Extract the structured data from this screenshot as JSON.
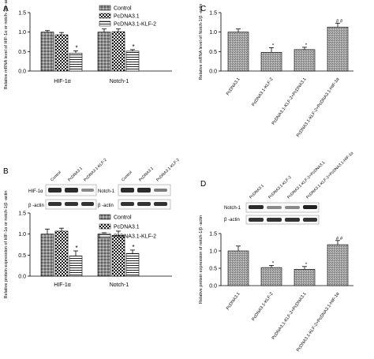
{
  "panels": [
    {
      "letter": "A",
      "chart_data": {
        "type": "bar",
        "categories": [
          "HIF-1α",
          "Notch-1"
        ],
        "series": [
          {
            "name": "Control",
            "values": [
              1.0,
              1.0
            ],
            "errors": [
              0.04,
              0.08
            ],
            "marks": [
              "",
              ""
            ]
          },
          {
            "name": "PcDNA3.1",
            "values": [
              0.93,
              1.01
            ],
            "errors": [
              0.06,
              0.07
            ],
            "marks": [
              "",
              ""
            ]
          },
          {
            "name": "PcDNA3.1-KLF-2",
            "values": [
              0.46,
              0.51
            ],
            "errors": [
              0.06,
              0.04
            ],
            "marks": [
              "*",
              "*"
            ]
          }
        ],
        "ylabel": "Relative mRNA level of HIF-1α or notch-1/β -actin",
        "ylim": [
          0,
          1.5
        ],
        "yticks": [
          "0.0",
          "0.5",
          "1.0",
          "1.5"
        ],
        "legend_position": "top-right"
      }
    },
    {
      "letter": "B",
      "blot": {
        "columns": [
          "Control",
          "PcDNA3.1",
          "PcDNA3.1-KLF-2"
        ],
        "left_rows": [
          "HIF-1α",
          "β -actin"
        ],
        "right_columns": [
          "Control",
          "PcDNA3.1",
          "PcDNA3.1-KLF-2"
        ],
        "right_rows": [
          "Notch-1",
          "β -actin"
        ]
      },
      "chart_data": {
        "type": "bar",
        "categories": [
          "HIF-1α",
          "Notch-1"
        ],
        "series": [
          {
            "name": "Control",
            "values": [
              1.0,
              1.0
            ],
            "errors": [
              0.12,
              0.03
            ],
            "marks": [
              "",
              ""
            ]
          },
          {
            "name": "PcDNA3.1",
            "values": [
              1.07,
              0.97
            ],
            "errors": [
              0.07,
              0.1
            ],
            "marks": [
              "",
              ""
            ]
          },
          {
            "name": "PcDNA3.1-KLF-2",
            "values": [
              0.48,
              0.54
            ],
            "errors": [
              0.12,
              0.08
            ],
            "marks": [
              "*",
              "*"
            ]
          }
        ],
        "ylabel": "Relative protein expression of HIF-1α or notch-1/β -actin",
        "ylim": [
          0,
          1.5
        ],
        "yticks": [
          "0.0",
          "0.5",
          "1.0",
          "1.5"
        ],
        "legend_position": "top-right"
      }
    },
    {
      "letter": "C",
      "chart_data": {
        "type": "bar",
        "categories": [
          "PcDNA3.1",
          "PcDNA3.1-KLF-2",
          "PcDNA3.1-KLF-2+PcDNA3.1",
          "PcDNA3.1-KLF-2+PcDNA3.1-HIF-1α"
        ],
        "values": [
          1.0,
          0.48,
          0.55,
          1.13
        ],
        "errors": [
          0.08,
          0.12,
          0.06,
          0.1
        ],
        "marks": [
          "",
          "*",
          "*",
          "# #"
        ],
        "ylabel": "Relative mRNA level of Notch-1/β -actin",
        "ylim": [
          0,
          1.5
        ],
        "yticks": [
          "0.0",
          "0.5",
          "1.0",
          "1.5"
        ]
      }
    },
    {
      "letter": "D",
      "blot": {
        "columns": [
          "PcDNA3.1",
          "PcDNA3.1-KLF-2",
          "PcDNA3.1-KLF-2+PcDNA3.1",
          "PcDNA3.1-KLF-2+PcDNA3.1-HIF-1α"
        ],
        "rows": [
          "Notch-1",
          "β -actin"
        ]
      },
      "chart_data": {
        "type": "bar",
        "categories": [
          "PcDNA3.1",
          "PcDNA3.1-KLF-2",
          "PcDNA3.1-KLF-2+PcDNA3.1",
          "PcDNA3.1-KLF-2+PcDNA3.1-HIF-1α"
        ],
        "values": [
          1.0,
          0.52,
          0.47,
          1.18
        ],
        "errors": [
          0.14,
          0.06,
          0.08,
          0.12
        ],
        "marks": [
          "",
          "*",
          "*",
          "# #"
        ],
        "ylabel": "Relative protein expression of notch-1/β -actin",
        "ylim": [
          0,
          1.5
        ],
        "yticks": [
          "0.0",
          "0.5",
          "1.0",
          "1.5"
        ]
      }
    }
  ]
}
